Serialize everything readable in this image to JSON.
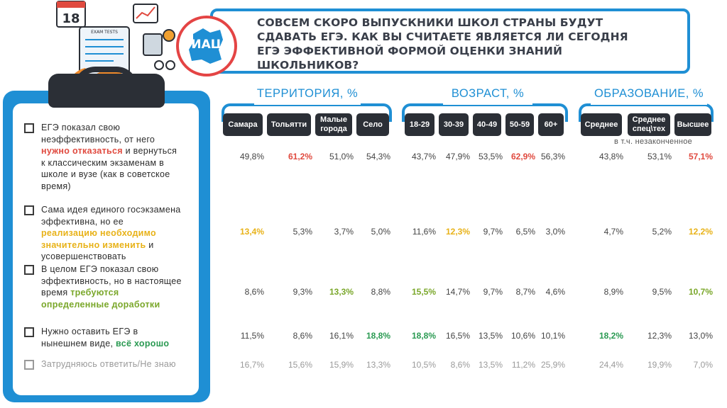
{
  "header": {
    "title": "СОВСЕМ СКОРО ВЫПУСКНИКИ ШКОЛ СТРАНЫ БУДУТ СДАВАТЬ ЕГЭ. КАК ВЫ СЧИТАЕТЕ ЯВЛЯЕТСЯ ЛИ СЕГОДНЯ ЕГЭ ЭФФЕКТИВНОЙ ФОРМОЙ ОЦЕНКИ ЗНАНИЙ ШКОЛЬНИКОВ?",
    "logo_text": "ИАЦ",
    "illustration": {
      "calendar_day": "18",
      "sheet_label": "EXAM TESTS"
    }
  },
  "colors": {
    "accent": "#1f8fd4",
    "dark": "#2b2f36",
    "red": "#e04a3f",
    "yellow": "#e8b218",
    "green": "#7aa72a",
    "dark_green": "#2a9a52",
    "muted": "#9a9a9a",
    "logo_red": "#e44444"
  },
  "groups": [
    {
      "title": "ТЕРРИТОРИЯ, %"
    },
    {
      "title": "ВОЗРАСТ, %"
    },
    {
      "title": "ОБРАЗОВАНИЕ, %"
    }
  ],
  "education_note": "в т.ч. незаконченное",
  "answers": [
    {
      "parts": [
        {
          "t": "ЕГЭ показал свою неэффективность, от него "
        },
        {
          "t": "нужно отказаться",
          "c": "red"
        },
        {
          "t": " и вернуться к классическим экзаменам в школе и вузе (как в советское время)"
        }
      ]
    },
    {
      "parts": [
        {
          "t": "Сама идея единого госэкзамена эффективна, но ее "
        },
        {
          "t": "реализацию необходимо значительно изменить",
          "c": "yellow"
        },
        {
          "t": " и усовершенствовать"
        }
      ]
    },
    {
      "parts": [
        {
          "t": "В целом ЕГЭ показал свою эффективность, но в настоящее время "
        },
        {
          "t": "требуются определенные доработки",
          "c": "green"
        }
      ]
    },
    {
      "parts": [
        {
          "t": "Нужно оставить ЕГЭ в нынешнем виде, "
        },
        {
          "t": "всё хорошо",
          "c": "dgreen"
        }
      ]
    },
    {
      "parts": [
        {
          "t": "Затрудняюсь ответить/Не знаю"
        }
      ],
      "muted": true
    }
  ],
  "chart_data": {
    "type": "table",
    "title": "СОВСЕМ СКОРО ВЫПУСКНИКИ ШКОЛ СТРАНЫ БУДУТ СДАВАТЬ ЕГЭ. КАК ВЫ СЧИТАЕТЕ ЯВЛЯЕТСЯ ЛИ СЕГОДНЯ ЕГЭ ЭФФЕКТИВНОЙ ФОРМОЙ ОЦЕНКИ ЗНАНИЙ ШКОЛЬНИКОВ?",
    "unit": "%",
    "column_groups": [
      {
        "name": "ТЕРРИТОРИЯ, %",
        "columns": [
          "Самара",
          "Тольятти",
          "Малые города",
          "Село"
        ]
      },
      {
        "name": "ВОЗРАСТ, %",
        "columns": [
          "18-29",
          "30-39",
          "40-49",
          "50-59",
          "60+"
        ]
      },
      {
        "name": "ОБРАЗОВАНИЕ, %",
        "columns": [
          "Среднее",
          "Среднее спец\\тех",
          "Высшее"
        ]
      }
    ],
    "columns": [
      "Самара",
      "Тольятти",
      "Малые города",
      "Село",
      "18-29",
      "30-39",
      "40-49",
      "50-59",
      "60+",
      "Среднее",
      "Среднее спец\\тех",
      "Высшее"
    ],
    "rows": [
      {
        "label": "ЕГЭ показал свою неэффективность, от него нужно отказаться и вернуться к классическим экзаменам в школе и вузе (как в советское время)",
        "values": [
          "49,8%",
          "61,2%",
          "51,0%",
          "54,3%",
          "43,7%",
          "47,9%",
          "53,5%",
          "62,9%",
          "56,3%",
          "43,8%",
          "53,1%",
          "57,1%"
        ],
        "highlight": [
          null,
          "red",
          null,
          null,
          null,
          null,
          null,
          "red",
          null,
          null,
          null,
          "red"
        ]
      },
      {
        "label": "Сама идея единого госэкзамена эффективна, но ее реализацию необходимо значительно изменить и усовершенствовать",
        "values": [
          "13,4%",
          "5,3%",
          "3,7%",
          "5,0%",
          "11,6%",
          "12,3%",
          "9,7%",
          "6,5%",
          "3,0%",
          "4,7%",
          "5,2%",
          "12,2%"
        ],
        "highlight": [
          "yellow",
          null,
          null,
          null,
          null,
          "yellow",
          null,
          null,
          null,
          null,
          null,
          "yellow"
        ]
      },
      {
        "label": "В целом ЕГЭ показал свою эффективность, но в настоящее время требуются определенные доработки",
        "values": [
          "8,6%",
          "9,3%",
          "13,3%",
          "8,8%",
          "15,5%",
          "14,7%",
          "9,7%",
          "8,7%",
          "4,6%",
          "8,9%",
          "9,5%",
          "10,7%"
        ],
        "highlight": [
          null,
          null,
          "green",
          null,
          "green",
          null,
          null,
          null,
          null,
          null,
          null,
          "green"
        ]
      },
      {
        "label": "Нужно оставить ЕГЭ в нынешнем виде, всё хорошо",
        "values": [
          "11,5%",
          "8,6%",
          "16,1%",
          "18,8%",
          "18,8%",
          "16,5%",
          "13,5%",
          "10,6%",
          "10,1%",
          "18,2%",
          "12,3%",
          "13,0%"
        ],
        "highlight": [
          null,
          null,
          null,
          "dgreen",
          "dgreen",
          null,
          null,
          null,
          null,
          "dgreen",
          null,
          null
        ]
      },
      {
        "label": "Затрудняюсь ответить/Не знаю",
        "values": [
          "16,7%",
          "15,6%",
          "15,9%",
          "13,3%",
          "10,5%",
          "8,6%",
          "13,5%",
          "11,2%",
          "25,9%",
          "24,4%",
          "19,9%",
          "7,0%"
        ],
        "highlight": [
          null,
          null,
          null,
          null,
          null,
          null,
          null,
          null,
          null,
          null,
          null,
          null
        ],
        "muted": true
      }
    ]
  }
}
